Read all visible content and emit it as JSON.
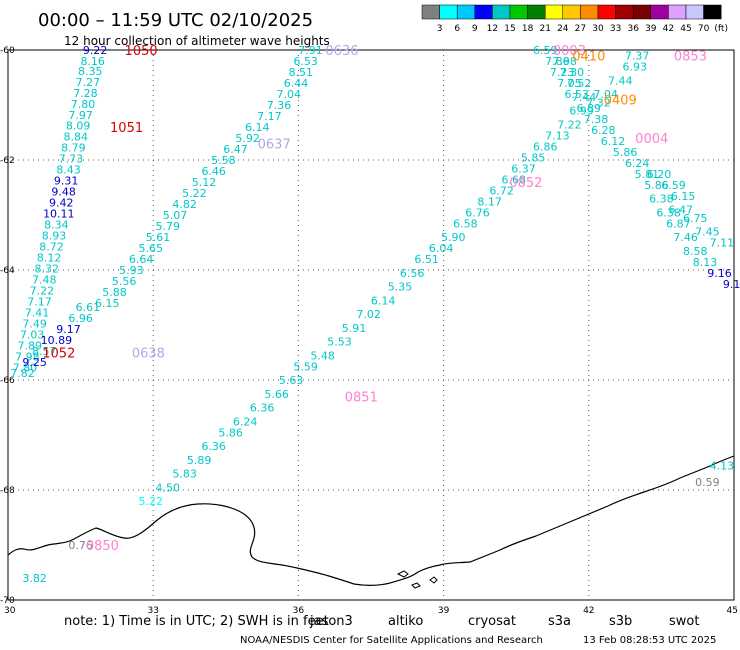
{
  "title": "00:00 – 11:59 UTC 02/10/2025",
  "subtitle": "12 hour collection of altimeter wave heights",
  "note_prefix": "note:  1) Time is in UTC;  2) SWH is in feet",
  "missions": [
    {
      "name": "jason3",
      "color": "#006400"
    },
    {
      "name": "altiko",
      "color": "#ff8c00"
    },
    {
      "name": "cryosat",
      "color": "#dd0000"
    },
    {
      "name": "s3a",
      "color": "#8b0000"
    },
    {
      "name": "s3b",
      "color": "#b0a8e8"
    },
    {
      "name": "swot",
      "color": "#ff80d0"
    }
  ],
  "footer_left": "NOAA/NESDIS Center for Satellite Applications and Research",
  "footer_right": "13 Feb 08:28:53 UTC 2025",
  "scale": {
    "labels": [
      "3",
      "6",
      "9",
      "12",
      "15",
      "18",
      "21",
      "24",
      "27",
      "30",
      "33",
      "36",
      "39",
      "42",
      "45",
      "70",
      "(ft)"
    ],
    "colors": [
      "#808080",
      "#00ffff",
      "#00c8ff",
      "#0000ff",
      "#00c8c8",
      "#00c800",
      "#008000",
      "#ffff00",
      "#ffc800",
      "#ff8c00",
      "#ff0000",
      "#a00000",
      "#780000",
      "#a000a0",
      "#e0a0ff",
      "#c8c8ff",
      "#000000"
    ]
  },
  "chart_data": {
    "type": "scatter",
    "x_ticks": [
      "30",
      "33",
      "36",
      "39",
      "42",
      "45"
    ],
    "y_ticks": [
      "-60",
      "-62",
      "-64",
      "-66",
      "-68",
      "-70"
    ],
    "xlim": [
      30,
      45
    ],
    "ylim": [
      -70,
      -60
    ],
    "grid": true,
    "passes": [
      {
        "label": "1050",
        "color": "#dd0000",
        "x": 32.75,
        "y": -60.0
      },
      {
        "label": "1051",
        "color": "#dd0000",
        "x": 32.45,
        "y": -61.4
      },
      {
        "label": "1052",
        "color": "#dd0000",
        "x": 31.05,
        "y": -65.5
      },
      {
        "label": "0636",
        "color": "#b0a8e8",
        "x": 36.9,
        "y": -60.0
      },
      {
        "label": "0637",
        "color": "#b0a8e8",
        "x": 35.5,
        "y": -61.7
      },
      {
        "label": "0638",
        "color": "#b0a8e8",
        "x": 32.9,
        "y": -65.5
      },
      {
        "label": "0003",
        "color": "#ff80d0",
        "x": 41.6,
        "y": -60.0
      },
      {
        "label": "0410",
        "color": "#ff8c00",
        "x": 42.0,
        "y": -60.1
      },
      {
        "label": "0853",
        "color": "#ff80d0",
        "x": 44.1,
        "y": -60.1
      },
      {
        "label": "0409",
        "color": "#ff8c00",
        "x": 42.65,
        "y": -60.9
      },
      {
        "label": "0004",
        "color": "#ff80d0",
        "x": 43.3,
        "y": -61.6
      },
      {
        "label": "0852",
        "color": "#ff80d0",
        "x": 40.7,
        "y": -62.4
      },
      {
        "label": "0851",
        "color": "#ff80d0",
        "x": 37.3,
        "y": -66.3
      },
      {
        "label": "0850",
        "color": "#ff80d0",
        "x": 31.95,
        "y": -69.0
      }
    ],
    "points": [
      {
        "v": "9.22",
        "x": 31.8,
        "y": -60.0,
        "c": "#0000c8"
      },
      {
        "v": "8.16",
        "x": 31.75,
        "y": -60.2,
        "c": "#00c8c8"
      },
      {
        "v": "8.35",
        "x": 31.7,
        "y": -60.38,
        "c": "#00c8c8"
      },
      {
        "v": "7.27",
        "x": 31.65,
        "y": -60.58,
        "c": "#00c8c8"
      },
      {
        "v": "7.28",
        "x": 31.6,
        "y": -60.78,
        "c": "#00c8c8"
      },
      {
        "v": "7.80",
        "x": 31.55,
        "y": -60.98,
        "c": "#00c8c8"
      },
      {
        "v": "7.97",
        "x": 31.5,
        "y": -61.18,
        "c": "#00c8c8"
      },
      {
        "v": "8.09",
        "x": 31.45,
        "y": -61.37,
        "c": "#00c8c8"
      },
      {
        "v": "8.84",
        "x": 31.4,
        "y": -61.57,
        "c": "#00c8c8"
      },
      {
        "v": "8.79",
        "x": 31.35,
        "y": -61.77,
        "c": "#00c8c8"
      },
      {
        "v": "7.73",
        "x": 31.3,
        "y": -61.97,
        "c": "#00c8c8"
      },
      {
        "v": "8.43",
        "x": 31.25,
        "y": -62.17,
        "c": "#00c8c8"
      },
      {
        "v": "9.31",
        "x": 31.2,
        "y": -62.37,
        "c": "#0000c8"
      },
      {
        "v": "9.48",
        "x": 31.15,
        "y": -62.57,
        "c": "#0000c8"
      },
      {
        "v": "9.42",
        "x": 31.1,
        "y": -62.77,
        "c": "#0000c8"
      },
      {
        "v": "10.11",
        "x": 31.05,
        "y": -62.97,
        "c": "#0000c8"
      },
      {
        "v": "8.34",
        "x": 31.0,
        "y": -63.17,
        "c": "#00c8c8"
      },
      {
        "v": "8.93",
        "x": 30.95,
        "y": -63.37,
        "c": "#00c8c8"
      },
      {
        "v": "8.72",
        "x": 30.9,
        "y": -63.57,
        "c": "#00c8c8"
      },
      {
        "v": "8.12",
        "x": 30.85,
        "y": -63.77,
        "c": "#00c8c8"
      },
      {
        "v": "8.32",
        "x": 30.8,
        "y": -63.97,
        "c": "#00c8c8"
      },
      {
        "v": "7.48",
        "x": 30.75,
        "y": -64.17,
        "c": "#00c8c8"
      },
      {
        "v": "7.22",
        "x": 30.7,
        "y": -64.37,
        "c": "#00c8c8"
      },
      {
        "v": "7.17",
        "x": 30.65,
        "y": -64.57,
        "c": "#00c8c8"
      },
      {
        "v": "7.41",
        "x": 30.6,
        "y": -64.77,
        "c": "#00c8c8"
      },
      {
        "v": "7.49",
        "x": 30.55,
        "y": -64.97,
        "c": "#00c8c8"
      },
      {
        "v": "7.03",
        "x": 30.5,
        "y": -65.17,
        "c": "#00c8c8"
      },
      {
        "v": "7.89",
        "x": 30.45,
        "y": -65.37,
        "c": "#00c8c8"
      },
      {
        "v": "7.98",
        "x": 30.4,
        "y": -65.57,
        "c": "#00c8c8"
      },
      {
        "v": "7.80",
        "x": 30.35,
        "y": -65.77,
        "c": "#00c8c8"
      },
      {
        "v": "7.82",
        "x": 30.3,
        "y": -65.87,
        "c": "#00c8c8"
      },
      {
        "v": "6.61",
        "x": 31.65,
        "y": -64.67,
        "c": "#00c8c8"
      },
      {
        "v": "6.96",
        "x": 31.5,
        "y": -64.87,
        "c": "#00c8c8"
      },
      {
        "v": "9.17",
        "x": 31.25,
        "y": -65.07,
        "c": "#0000c8"
      },
      {
        "v": "10.89",
        "x": 31.0,
        "y": -65.27,
        "c": "#0000c8"
      },
      {
        "v": "8.57",
        "x": 30.75,
        "y": -65.47,
        "c": "#00c8c8"
      },
      {
        "v": "9.25",
        "x": 30.55,
        "y": -65.67,
        "c": "#0000c8"
      },
      {
        "v": "7.91",
        "x": 36.25,
        "y": -60.0,
        "c": "#00c8c8"
      },
      {
        "v": "6.53",
        "x": 36.15,
        "y": -60.2,
        "c": "#00c8c8"
      },
      {
        "v": "8.51",
        "x": 36.05,
        "y": -60.4,
        "c": "#00c8c8"
      },
      {
        "v": "6.44",
        "x": 35.95,
        "y": -60.6,
        "c": "#00c8c8"
      },
      {
        "v": "7.04",
        "x": 35.8,
        "y": -60.8,
        "c": "#00c8c8"
      },
      {
        "v": "7.36",
        "x": 35.6,
        "y": -61.0,
        "c": "#00c8c8"
      },
      {
        "v": "7.17",
        "x": 35.4,
        "y": -61.2,
        "c": "#00c8c8"
      },
      {
        "v": "6.14",
        "x": 35.15,
        "y": -61.4,
        "c": "#00c8c8"
      },
      {
        "v": "5.92",
        "x": 34.95,
        "y": -61.6,
        "c": "#00c8c8"
      },
      {
        "v": "6.47",
        "x": 34.7,
        "y": -61.8,
        "c": "#00c8c8"
      },
      {
        "v": "5.58",
        "x": 34.45,
        "y": -62.0,
        "c": "#00c8c8"
      },
      {
        "v": "6.46",
        "x": 34.25,
        "y": -62.2,
        "c": "#00c8c8"
      },
      {
        "v": "5.12",
        "x": 34.05,
        "y": -62.4,
        "c": "#00c8c8"
      },
      {
        "v": "5.22",
        "x": 33.85,
        "y": -62.6,
        "c": "#00c8c8"
      },
      {
        "v": "4.82",
        "x": 33.65,
        "y": -62.8,
        "c": "#00c8c8"
      },
      {
        "v": "5.07",
        "x": 33.45,
        "y": -63.0,
        "c": "#00c8c8"
      },
      {
        "v": "5.79",
        "x": 33.3,
        "y": -63.2,
        "c": "#00c8c8"
      },
      {
        "v": "5.61",
        "x": 33.1,
        "y": -63.4,
        "c": "#00c8c8"
      },
      {
        "v": "5.65",
        "x": 32.95,
        "y": -63.6,
        "c": "#00c8c8"
      },
      {
        "v": "6.64",
        "x": 32.75,
        "y": -63.8,
        "c": "#00c8c8"
      },
      {
        "v": "5.93",
        "x": 32.55,
        "y": -64.0,
        "c": "#00c8c8"
      },
      {
        "v": "5.56",
        "x": 32.4,
        "y": -64.2,
        "c": "#00c8c8"
      },
      {
        "v": "5.88",
        "x": 32.2,
        "y": -64.4,
        "c": "#00c8c8"
      },
      {
        "v": "6.15",
        "x": 32.05,
        "y": -64.6,
        "c": "#00c8c8"
      },
      {
        "v": "6.59",
        "x": 41.1,
        "y": -60.0,
        "c": "#00c8c8"
      },
      {
        "v": "7.86",
        "x": 41.35,
        "y": -60.2,
        "c": "#00c8c8"
      },
      {
        "v": "7.98",
        "x": 41.5,
        "y": -60.2,
        "c": "#00c8c8"
      },
      {
        "v": "7.23",
        "x": 41.45,
        "y": -60.4,
        "c": "#00c8c8"
      },
      {
        "v": "7.30",
        "x": 41.65,
        "y": -60.4,
        "c": "#00c8c8"
      },
      {
        "v": "7.05",
        "x": 41.6,
        "y": -60.6,
        "c": "#00c8c8"
      },
      {
        "v": "7.52",
        "x": 41.8,
        "y": -60.6,
        "c": "#00c8c8"
      },
      {
        "v": "6.53",
        "x": 41.75,
        "y": -60.8,
        "c": "#00c8c8"
      },
      {
        "v": "7.44",
        "x": 41.9,
        "y": -60.85,
        "c": "#00c8c8"
      },
      {
        "v": "7.04",
        "x": 42.35,
        "y": -60.8,
        "c": "#00c8c8"
      },
      {
        "v": "7.44",
        "x": 42.65,
        "y": -60.55,
        "c": "#00c8c8"
      },
      {
        "v": "6.93",
        "x": 42.95,
        "y": -60.3,
        "c": "#00c8c8"
      },
      {
        "v": "7.37",
        "x": 43.0,
        "y": -60.1,
        "c": "#00c8c8"
      },
      {
        "v": "7.32",
        "x": 42.2,
        "y": -60.95,
        "c": "#00c8c8"
      },
      {
        "v": "6.89",
        "x": 42.0,
        "y": -61.05,
        "c": "#00c8c8"
      },
      {
        "v": "6.99",
        "x": 41.85,
        "y": -61.1,
        "c": "#00c8c8"
      },
      {
        "v": "7.38",
        "x": 42.15,
        "y": -61.25,
        "c": "#00c8c8"
      },
      {
        "v": "7.22",
        "x": 41.6,
        "y": -61.35,
        "c": "#00c8c8"
      },
      {
        "v": "6.28",
        "x": 42.3,
        "y": -61.45,
        "c": "#00c8c8"
      },
      {
        "v": "7.13",
        "x": 41.35,
        "y": -61.55,
        "c": "#00c8c8"
      },
      {
        "v": "6.12",
        "x": 42.5,
        "y": -61.65,
        "c": "#00c8c8"
      },
      {
        "v": "6.86",
        "x": 41.1,
        "y": -61.75,
        "c": "#00c8c8"
      },
      {
        "v": "5.86",
        "x": 42.75,
        "y": -61.85,
        "c": "#00c8c8"
      },
      {
        "v": "5.85",
        "x": 40.85,
        "y": -61.95,
        "c": "#00c8c8"
      },
      {
        "v": "6.24",
        "x": 43.0,
        "y": -62.05,
        "c": "#00c8c8"
      },
      {
        "v": "6.37",
        "x": 40.65,
        "y": -62.15,
        "c": "#00c8c8"
      },
      {
        "v": "5.81",
        "x": 43.2,
        "y": -62.25,
        "c": "#00c8c8"
      },
      {
        "v": "6.68",
        "x": 40.45,
        "y": -62.35,
        "c": "#00c8c8"
      },
      {
        "v": "6.20",
        "x": 43.45,
        "y": -62.25,
        "c": "#00c8c8"
      },
      {
        "v": "5.86",
        "x": 43.4,
        "y": -62.45,
        "c": "#00c8c8"
      },
      {
        "v": "6.59",
        "x": 43.75,
        "y": -62.45,
        "c": "#00c8c8"
      },
      {
        "v": "6.72",
        "x": 40.2,
        "y": -62.55,
        "c": "#00c8c8"
      },
      {
        "v": "6.15",
        "x": 43.95,
        "y": -62.65,
        "c": "#00c8c8"
      },
      {
        "v": "6.38",
        "x": 43.5,
        "y": -62.7,
        "c": "#00c8c8"
      },
      {
        "v": "6.47",
        "x": 43.9,
        "y": -62.9,
        "c": "#00c8c8"
      },
      {
        "v": "6.38",
        "x": 43.65,
        "y": -62.95,
        "c": "#00c8c8"
      },
      {
        "v": "8.17",
        "x": 39.95,
        "y": -62.75,
        "c": "#00c8c8"
      },
      {
        "v": "6.75",
        "x": 44.2,
        "y": -63.05,
        "c": "#00c8c8"
      },
      {
        "v": "6.87",
        "x": 43.85,
        "y": -63.15,
        "c": "#00c8c8"
      },
      {
        "v": "6.76",
        "x": 39.7,
        "y": -62.95,
        "c": "#00c8c8"
      },
      {
        "v": "7.45",
        "x": 44.45,
        "y": -63.3,
        "c": "#00c8c8"
      },
      {
        "v": "7.46",
        "x": 44.0,
        "y": -63.4,
        "c": "#00c8c8"
      },
      {
        "v": "7.11",
        "x": 44.75,
        "y": -63.5,
        "c": "#00c8c8"
      },
      {
        "v": "8.58",
        "x": 44.2,
        "y": -63.65,
        "c": "#00c8c8"
      },
      {
        "v": "6.58",
        "x": 39.45,
        "y": -63.15,
        "c": "#00c8c8"
      },
      {
        "v": "8.13",
        "x": 44.4,
        "y": -63.85,
        "c": "#00c8c8"
      },
      {
        "v": "9.16",
        "x": 44.7,
        "y": -64.05,
        "c": "#0000c8"
      },
      {
        "v": "9.1",
        "x": 44.95,
        "y": -64.25,
        "c": "#0000c8"
      },
      {
        "v": "5.90",
        "x": 39.2,
        "y": -63.4,
        "c": "#00c8c8"
      },
      {
        "v": "6.04",
        "x": 38.95,
        "y": -63.6,
        "c": "#00c8c8"
      },
      {
        "v": "6.51",
        "x": 38.65,
        "y": -63.8,
        "c": "#00c8c8"
      },
      {
        "v": "6.56",
        "x": 38.35,
        "y": -64.05,
        "c": "#00c8c8"
      },
      {
        "v": "5.35",
        "x": 38.1,
        "y": -64.3,
        "c": "#00c8c8"
      },
      {
        "v": "6.14",
        "x": 37.75,
        "y": -64.55,
        "c": "#00c8c8"
      },
      {
        "v": "7.02",
        "x": 37.45,
        "y": -64.8,
        "c": "#00c8c8"
      },
      {
        "v": "5.91",
        "x": 37.15,
        "y": -65.05,
        "c": "#00c8c8"
      },
      {
        "v": "5.53",
        "x": 36.85,
        "y": -65.3,
        "c": "#00c8c8"
      },
      {
        "v": "5.48",
        "x": 36.5,
        "y": -65.55,
        "c": "#00c8c8"
      },
      {
        "v": "5.59",
        "x": 36.15,
        "y": -65.75,
        "c": "#00c8c8"
      },
      {
        "v": "5.63",
        "x": 35.85,
        "y": -66.0,
        "c": "#00c8c8"
      },
      {
        "v": "5.66",
        "x": 35.55,
        "y": -66.25,
        "c": "#00c8c8"
      },
      {
        "v": "6.36",
        "x": 35.25,
        "y": -66.5,
        "c": "#00c8c8"
      },
      {
        "v": "6.24",
        "x": 34.9,
        "y": -66.75,
        "c": "#00c8c8"
      },
      {
        "v": "5.86",
        "x": 34.6,
        "y": -66.95,
        "c": "#00c8c8"
      },
      {
        "v": "6.36",
        "x": 34.25,
        "y": -67.2,
        "c": "#00c8c8"
      },
      {
        "v": "5.89",
        "x": 33.95,
        "y": -67.45,
        "c": "#00c8c8"
      },
      {
        "v": "5.83",
        "x": 33.65,
        "y": -67.7,
        "c": "#00c8c8"
      },
      {
        "v": "4.50",
        "x": 33.3,
        "y": -67.95,
        "c": "#00c8c8"
      },
      {
        "v": "5.22",
        "x": 32.95,
        "y": -68.2,
        "c": "#00ffff"
      },
      {
        "v": "0.76",
        "x": 31.5,
        "y": -69.0,
        "c": "#808080"
      },
      {
        "v": "3.82",
        "x": 30.55,
        "y": -69.6,
        "c": "#00c8c8"
      },
      {
        "v": "4.13",
        "x": 44.75,
        "y": -67.55,
        "c": "#00c8c8"
      },
      {
        "v": "0.59",
        "x": 44.45,
        "y": -67.85,
        "c": "#808080"
      }
    ]
  }
}
